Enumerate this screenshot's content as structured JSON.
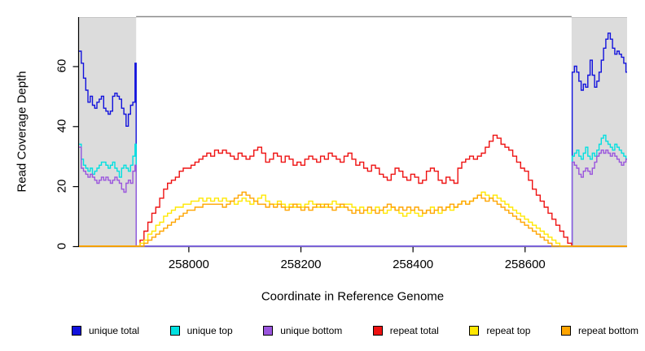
{
  "chart_data": {
    "type": "line",
    "style": "step",
    "title": "",
    "xlabel": "Coordinate in Reference Genome",
    "ylabel": "Read Coverage Depth",
    "xlim": [
      257804,
      258782
    ],
    "ylim": [
      0,
      78
    ],
    "x_ticks": [
      258000,
      258200,
      258400,
      258600
    ],
    "y_ticks": [
      0,
      20,
      40,
      60
    ],
    "grid": false,
    "shaded_regions": [
      {
        "x_start": 257804,
        "x_end": 257906,
        "fill": "#dcdcdc"
      },
      {
        "x_start": 258683,
        "x_end": 258782,
        "fill": "#dcdcdc"
      }
    ],
    "series": [
      {
        "name": "unique total",
        "color": "#1212dd",
        "x": [
          257804,
          257808,
          257812,
          257816,
          257820,
          257824,
          257828,
          257832,
          257836,
          257840,
          257844,
          257848,
          257852,
          257856,
          257860,
          257864,
          257868,
          257872,
          257876,
          257880,
          257884,
          257888,
          257892,
          257896,
          257900,
          257904,
          257906,
          258683,
          258684,
          258688,
          258692,
          258696,
          258700,
          258704,
          258708,
          258712,
          258716,
          258720,
          258724,
          258728,
          258732,
          258736,
          258740,
          258744,
          258748,
          258752,
          258756,
          258760,
          258764,
          258768,
          258772,
          258776,
          258780,
          258782
        ],
        "values": [
          65,
          61,
          56,
          52,
          48,
          50,
          47,
          46,
          48,
          49,
          50,
          46,
          45,
          44,
          45,
          50,
          51,
          50,
          49,
          46,
          44,
          40,
          44,
          47,
          48,
          61,
          0,
          0,
          58,
          60,
          58,
          55,
          52,
          54,
          53,
          57,
          62,
          57,
          53,
          55,
          58,
          62,
          66,
          69,
          71,
          69,
          66,
          64,
          65,
          64,
          63,
          61,
          58,
          58
        ]
      },
      {
        "name": "unique top",
        "color": "#00e0e0",
        "x": [
          257804,
          257808,
          257812,
          257816,
          257820,
          257824,
          257828,
          257832,
          257836,
          257840,
          257844,
          257848,
          257852,
          257856,
          257860,
          257864,
          257868,
          257872,
          257876,
          257880,
          257884,
          257888,
          257892,
          257896,
          257900,
          257904,
          257906,
          258683,
          258684,
          258688,
          258692,
          258696,
          258700,
          258704,
          258708,
          258712,
          258716,
          258720,
          258724,
          258728,
          258732,
          258736,
          258740,
          258744,
          258748,
          258752,
          258756,
          258760,
          258764,
          258768,
          258772,
          258776,
          258780,
          258782
        ],
        "values": [
          34,
          29,
          27,
          26,
          25,
          26,
          24,
          25,
          26,
          27,
          28,
          28,
          27,
          26,
          27,
          28,
          26,
          25,
          23,
          26,
          27,
          26,
          25,
          27,
          30,
          34,
          0,
          0,
          30,
          31,
          32,
          30,
          29,
          31,
          33,
          30,
          29,
          31,
          30,
          32,
          34,
          36,
          37,
          35,
          34,
          33,
          32,
          34,
          33,
          32,
          31,
          30,
          29,
          29
        ]
      },
      {
        "name": "unique bottom",
        "color": "#9a55dd",
        "x": [
          257804,
          257808,
          257812,
          257816,
          257820,
          257824,
          257828,
          257832,
          257836,
          257840,
          257844,
          257848,
          257852,
          257856,
          257860,
          257864,
          257868,
          257872,
          257876,
          257880,
          257884,
          257888,
          257892,
          257896,
          257900,
          257904,
          257906,
          258683,
          258684,
          258688,
          258692,
          258696,
          258700,
          258704,
          258708,
          258712,
          258716,
          258720,
          258724,
          258728,
          258732,
          258736,
          258740,
          258744,
          258748,
          258752,
          258756,
          258760,
          258764,
          258768,
          258772,
          258776,
          258780,
          258782
        ],
        "values": [
          33,
          26,
          25,
          24,
          23,
          24,
          23,
          22,
          21,
          22,
          23,
          22,
          23,
          22,
          21,
          22,
          23,
          22,
          21,
          19,
          18,
          21,
          22,
          21,
          25,
          27,
          0,
          0,
          28,
          27,
          26,
          24,
          23,
          25,
          26,
          25,
          24,
          26,
          28,
          30,
          31,
          32,
          31,
          32,
          31,
          30,
          31,
          30,
          29,
          28,
          27,
          28,
          29,
          29
        ]
      },
      {
        "name": "repeat total",
        "color": "#ee1111",
        "x": [
          257804,
          257906,
          257913,
          257920,
          257927,
          257934,
          257941,
          257948,
          257955,
          257962,
          257969,
          257976,
          257983,
          257990,
          257997,
          258004,
          258011,
          258018,
          258025,
          258032,
          258039,
          258046,
          258053,
          258060,
          258067,
          258074,
          258081,
          258088,
          258095,
          258102,
          258109,
          258116,
          258123,
          258130,
          258137,
          258144,
          258151,
          258158,
          258165,
          258172,
          258179,
          258186,
          258193,
          258200,
          258207,
          258214,
          258221,
          258228,
          258235,
          258242,
          258249,
          258256,
          258263,
          258270,
          258277,
          258284,
          258291,
          258298,
          258305,
          258312,
          258319,
          258326,
          258333,
          258340,
          258347,
          258354,
          258361,
          258368,
          258375,
          258382,
          258389,
          258396,
          258403,
          258410,
          258417,
          258424,
          258431,
          258438,
          258445,
          258452,
          258459,
          258466,
          258473,
          258480,
          258487,
          258494,
          258501,
          258508,
          258515,
          258522,
          258529,
          258536,
          258543,
          258550,
          258557,
          258564,
          258571,
          258578,
          258585,
          258592,
          258599,
          258606,
          258613,
          258620,
          258627,
          258634,
          258641,
          258648,
          258655,
          258662,
          258669,
          258676,
          258683,
          258782
        ],
        "values": [
          0,
          0,
          2,
          5,
          8,
          11,
          13,
          16,
          19,
          21,
          22,
          23,
          25,
          26,
          26,
          27,
          28,
          29,
          30,
          31,
          30,
          32,
          31,
          32,
          31,
          30,
          29,
          31,
          30,
          29,
          30,
          32,
          33,
          31,
          28,
          29,
          31,
          30,
          28,
          30,
          29,
          27,
          28,
          27,
          29,
          30,
          29,
          28,
          30,
          29,
          31,
          30,
          29,
          28,
          30,
          31,
          29,
          27,
          28,
          26,
          25,
          27,
          26,
          24,
          23,
          22,
          24,
          26,
          25,
          23,
          22,
          24,
          23,
          21,
          22,
          25,
          26,
          25,
          22,
          21,
          23,
          22,
          21,
          26,
          28,
          29,
          30,
          29,
          30,
          31,
          33,
          35,
          37,
          36,
          34,
          33,
          32,
          30,
          28,
          26,
          25,
          22,
          19,
          17,
          15,
          13,
          11,
          9,
          7,
          5,
          3,
          1,
          0,
          0
        ]
      },
      {
        "name": "repeat top",
        "color": "#ffe800",
        "x": [
          257804,
          257906,
          257913,
          257920,
          257927,
          257934,
          257941,
          257948,
          257955,
          257962,
          257969,
          257976,
          257983,
          257990,
          257997,
          258004,
          258011,
          258018,
          258025,
          258032,
          258039,
          258046,
          258053,
          258060,
          258067,
          258074,
          258081,
          258088,
          258095,
          258102,
          258109,
          258116,
          258123,
          258130,
          258137,
          258144,
          258151,
          258158,
          258165,
          258172,
          258179,
          258186,
          258193,
          258200,
          258207,
          258214,
          258221,
          258228,
          258235,
          258242,
          258249,
          258256,
          258263,
          258270,
          258277,
          258284,
          258291,
          258298,
          258305,
          258312,
          258319,
          258326,
          258333,
          258340,
          258347,
          258354,
          258361,
          258368,
          258375,
          258382,
          258389,
          258396,
          258403,
          258410,
          258417,
          258424,
          258431,
          258438,
          258445,
          258452,
          258459,
          258466,
          258473,
          258480,
          258487,
          258494,
          258501,
          258508,
          258515,
          258522,
          258529,
          258536,
          258543,
          258550,
          258557,
          258564,
          258571,
          258578,
          258585,
          258592,
          258599,
          258606,
          258613,
          258620,
          258627,
          258634,
          258641,
          258648,
          258655,
          258662,
          258669,
          258676,
          258683,
          258782
        ],
        "values": [
          0,
          0,
          1,
          2,
          4,
          5,
          7,
          8,
          10,
          11,
          12,
          13,
          13,
          14,
          14,
          15,
          15,
          16,
          15,
          16,
          15,
          16,
          15,
          16,
          15,
          15,
          14,
          15,
          16,
          15,
          14,
          15,
          16,
          17,
          15,
          14,
          14,
          15,
          14,
          13,
          14,
          13,
          14,
          13,
          14,
          15,
          14,
          13,
          14,
          13,
          14,
          15,
          14,
          13,
          14,
          14,
          13,
          12,
          13,
          12,
          11,
          12,
          13,
          12,
          11,
          12,
          13,
          12,
          11,
          10,
          11,
          12,
          11,
          10,
          11,
          12,
          13,
          12,
          11,
          12,
          13,
          12,
          13,
          14,
          15,
          14,
          15,
          16,
          17,
          18,
          17,
          16,
          17,
          16,
          15,
          14,
          13,
          12,
          11,
          10,
          9,
          8,
          7,
          6,
          5,
          4,
          3,
          2,
          1,
          0,
          0,
          0,
          0,
          0
        ]
      },
      {
        "name": "repeat bottom",
        "color": "#ffa500",
        "x": [
          257804,
          257906,
          257913,
          257920,
          257927,
          257934,
          257941,
          257948,
          257955,
          257962,
          257969,
          257976,
          257983,
          257990,
          257997,
          258004,
          258011,
          258018,
          258025,
          258032,
          258039,
          258046,
          258053,
          258060,
          258067,
          258074,
          258081,
          258088,
          258095,
          258102,
          258109,
          258116,
          258123,
          258130,
          258137,
          258144,
          258151,
          258158,
          258165,
          258172,
          258179,
          258186,
          258193,
          258200,
          258207,
          258214,
          258221,
          258228,
          258235,
          258242,
          258249,
          258256,
          258263,
          258270,
          258277,
          258284,
          258291,
          258298,
          258305,
          258312,
          258319,
          258326,
          258333,
          258340,
          258347,
          258354,
          258361,
          258368,
          258375,
          258382,
          258389,
          258396,
          258403,
          258410,
          258417,
          258424,
          258431,
          258438,
          258445,
          258452,
          258459,
          258466,
          258473,
          258480,
          258487,
          258494,
          258501,
          258508,
          258515,
          258522,
          258529,
          258536,
          258543,
          258550,
          258557,
          258564,
          258571,
          258578,
          258585,
          258592,
          258599,
          258606,
          258613,
          258620,
          258627,
          258634,
          258641,
          258648,
          258655,
          258662,
          258669,
          258676,
          258683,
          258782
        ],
        "values": [
          0,
          0,
          0,
          1,
          2,
          3,
          4,
          5,
          6,
          7,
          8,
          9,
          10,
          11,
          12,
          12,
          13,
          13,
          14,
          14,
          14,
          14,
          14,
          13,
          14,
          15,
          16,
          17,
          18,
          17,
          16,
          15,
          14,
          14,
          13,
          14,
          13,
          14,
          13,
          12,
          13,
          14,
          13,
          12,
          13,
          12,
          13,
          14,
          13,
          14,
          13,
          12,
          13,
          14,
          13,
          12,
          11,
          12,
          11,
          12,
          13,
          12,
          11,
          12,
          13,
          14,
          13,
          12,
          13,
          12,
          13,
          12,
          13,
          12,
          11,
          12,
          11,
          12,
          13,
          12,
          13,
          14,
          13,
          14,
          15,
          14,
          15,
          16,
          17,
          16,
          15,
          16,
          15,
          14,
          13,
          12,
          11,
          10,
          9,
          8,
          7,
          6,
          5,
          4,
          3,
          2,
          1,
          0,
          0,
          0,
          0,
          0,
          0,
          0
        ]
      }
    ],
    "axis_color": "#000000",
    "shaded_fill": "#dcdcdc",
    "top_boundary_line_color": "#8a8a8a"
  },
  "legend": {
    "items": [
      {
        "label": "unique total",
        "color": "#1212dd"
      },
      {
        "label": "unique top",
        "color": "#00e0e0"
      },
      {
        "label": "unique bottom",
        "color": "#9a55dd"
      },
      {
        "label": "repeat total",
        "color": "#ee1111"
      },
      {
        "label": "repeat top",
        "color": "#ffe800"
      },
      {
        "label": "repeat bottom",
        "color": "#ffa500"
      }
    ]
  }
}
